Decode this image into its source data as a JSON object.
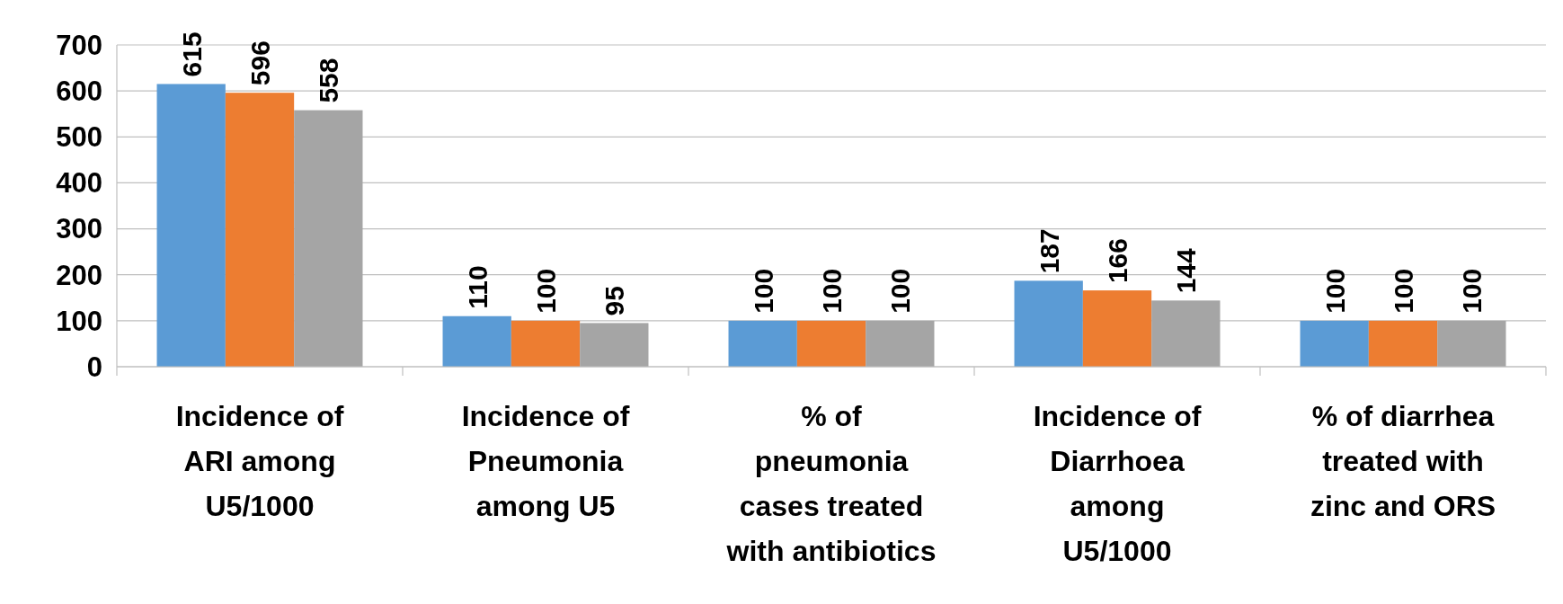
{
  "chart_data": {
    "type": "bar",
    "categories": [
      "Incidence of\nARI among\nU5/1000",
      "Incidence of\nPneumonia\namong U5",
      "% of\npneumonia\ncases treated\nwith antibiotics",
      "Incidence of\nDiarrhoea\namong\nU5/1000",
      "% of diarrhea\ntreated with\nzinc and ORS"
    ],
    "series": [
      {
        "color": "#5b9bd5",
        "values": [
          615,
          110,
          100,
          187,
          100
        ]
      },
      {
        "color": "#ed7d31",
        "values": [
          596,
          100,
          100,
          166,
          100
        ]
      },
      {
        "color": "#a5a5a5",
        "values": [
          558,
          95,
          100,
          144,
          100
        ]
      }
    ],
    "ylim": [
      0,
      700
    ],
    "yticks": [
      0,
      100,
      200,
      300,
      400,
      500,
      600,
      700
    ],
    "grid": "y",
    "data_labels": true
  }
}
